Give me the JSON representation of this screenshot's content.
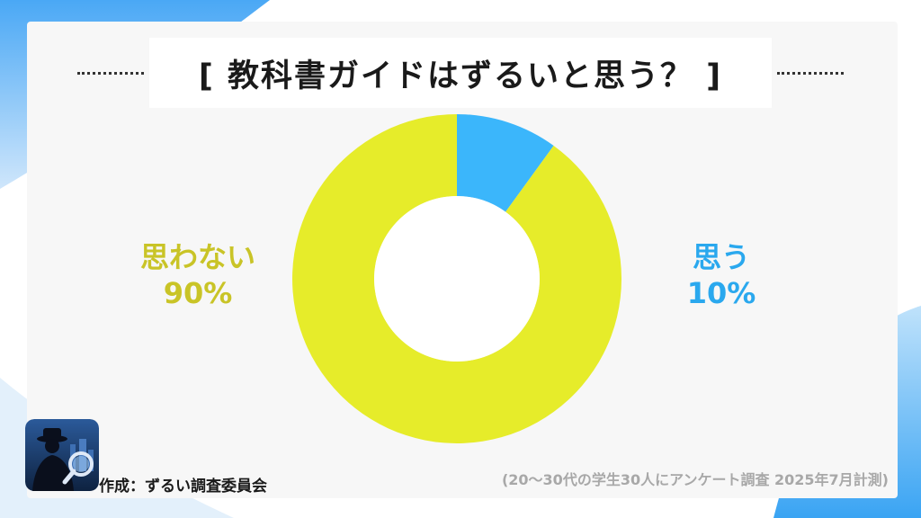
{
  "title": "[ 教科書ガイドはずるいと思う？ ]",
  "credit": "作成：ずるい調査委員会",
  "note": "(20〜30代の学生30人にアンケート調査 2025年7月計測)",
  "colors": {
    "yes": "#3bb6fb",
    "no": "#e6ec2a",
    "yes_text": "#2aa8ee",
    "no_text": "#c9c427"
  },
  "icons": {
    "logo": "detective-magnifier-icon"
  },
  "chart_data": {
    "type": "pie",
    "donut": true,
    "start": "top",
    "direction": "clockwise",
    "slices": [
      {
        "label": "思う",
        "value": 10,
        "value_label": "10%",
        "color": "#3bb6fb"
      },
      {
        "label": "思わない",
        "value": 90,
        "value_label": "90%",
        "color": "#e6ec2a"
      }
    ]
  }
}
